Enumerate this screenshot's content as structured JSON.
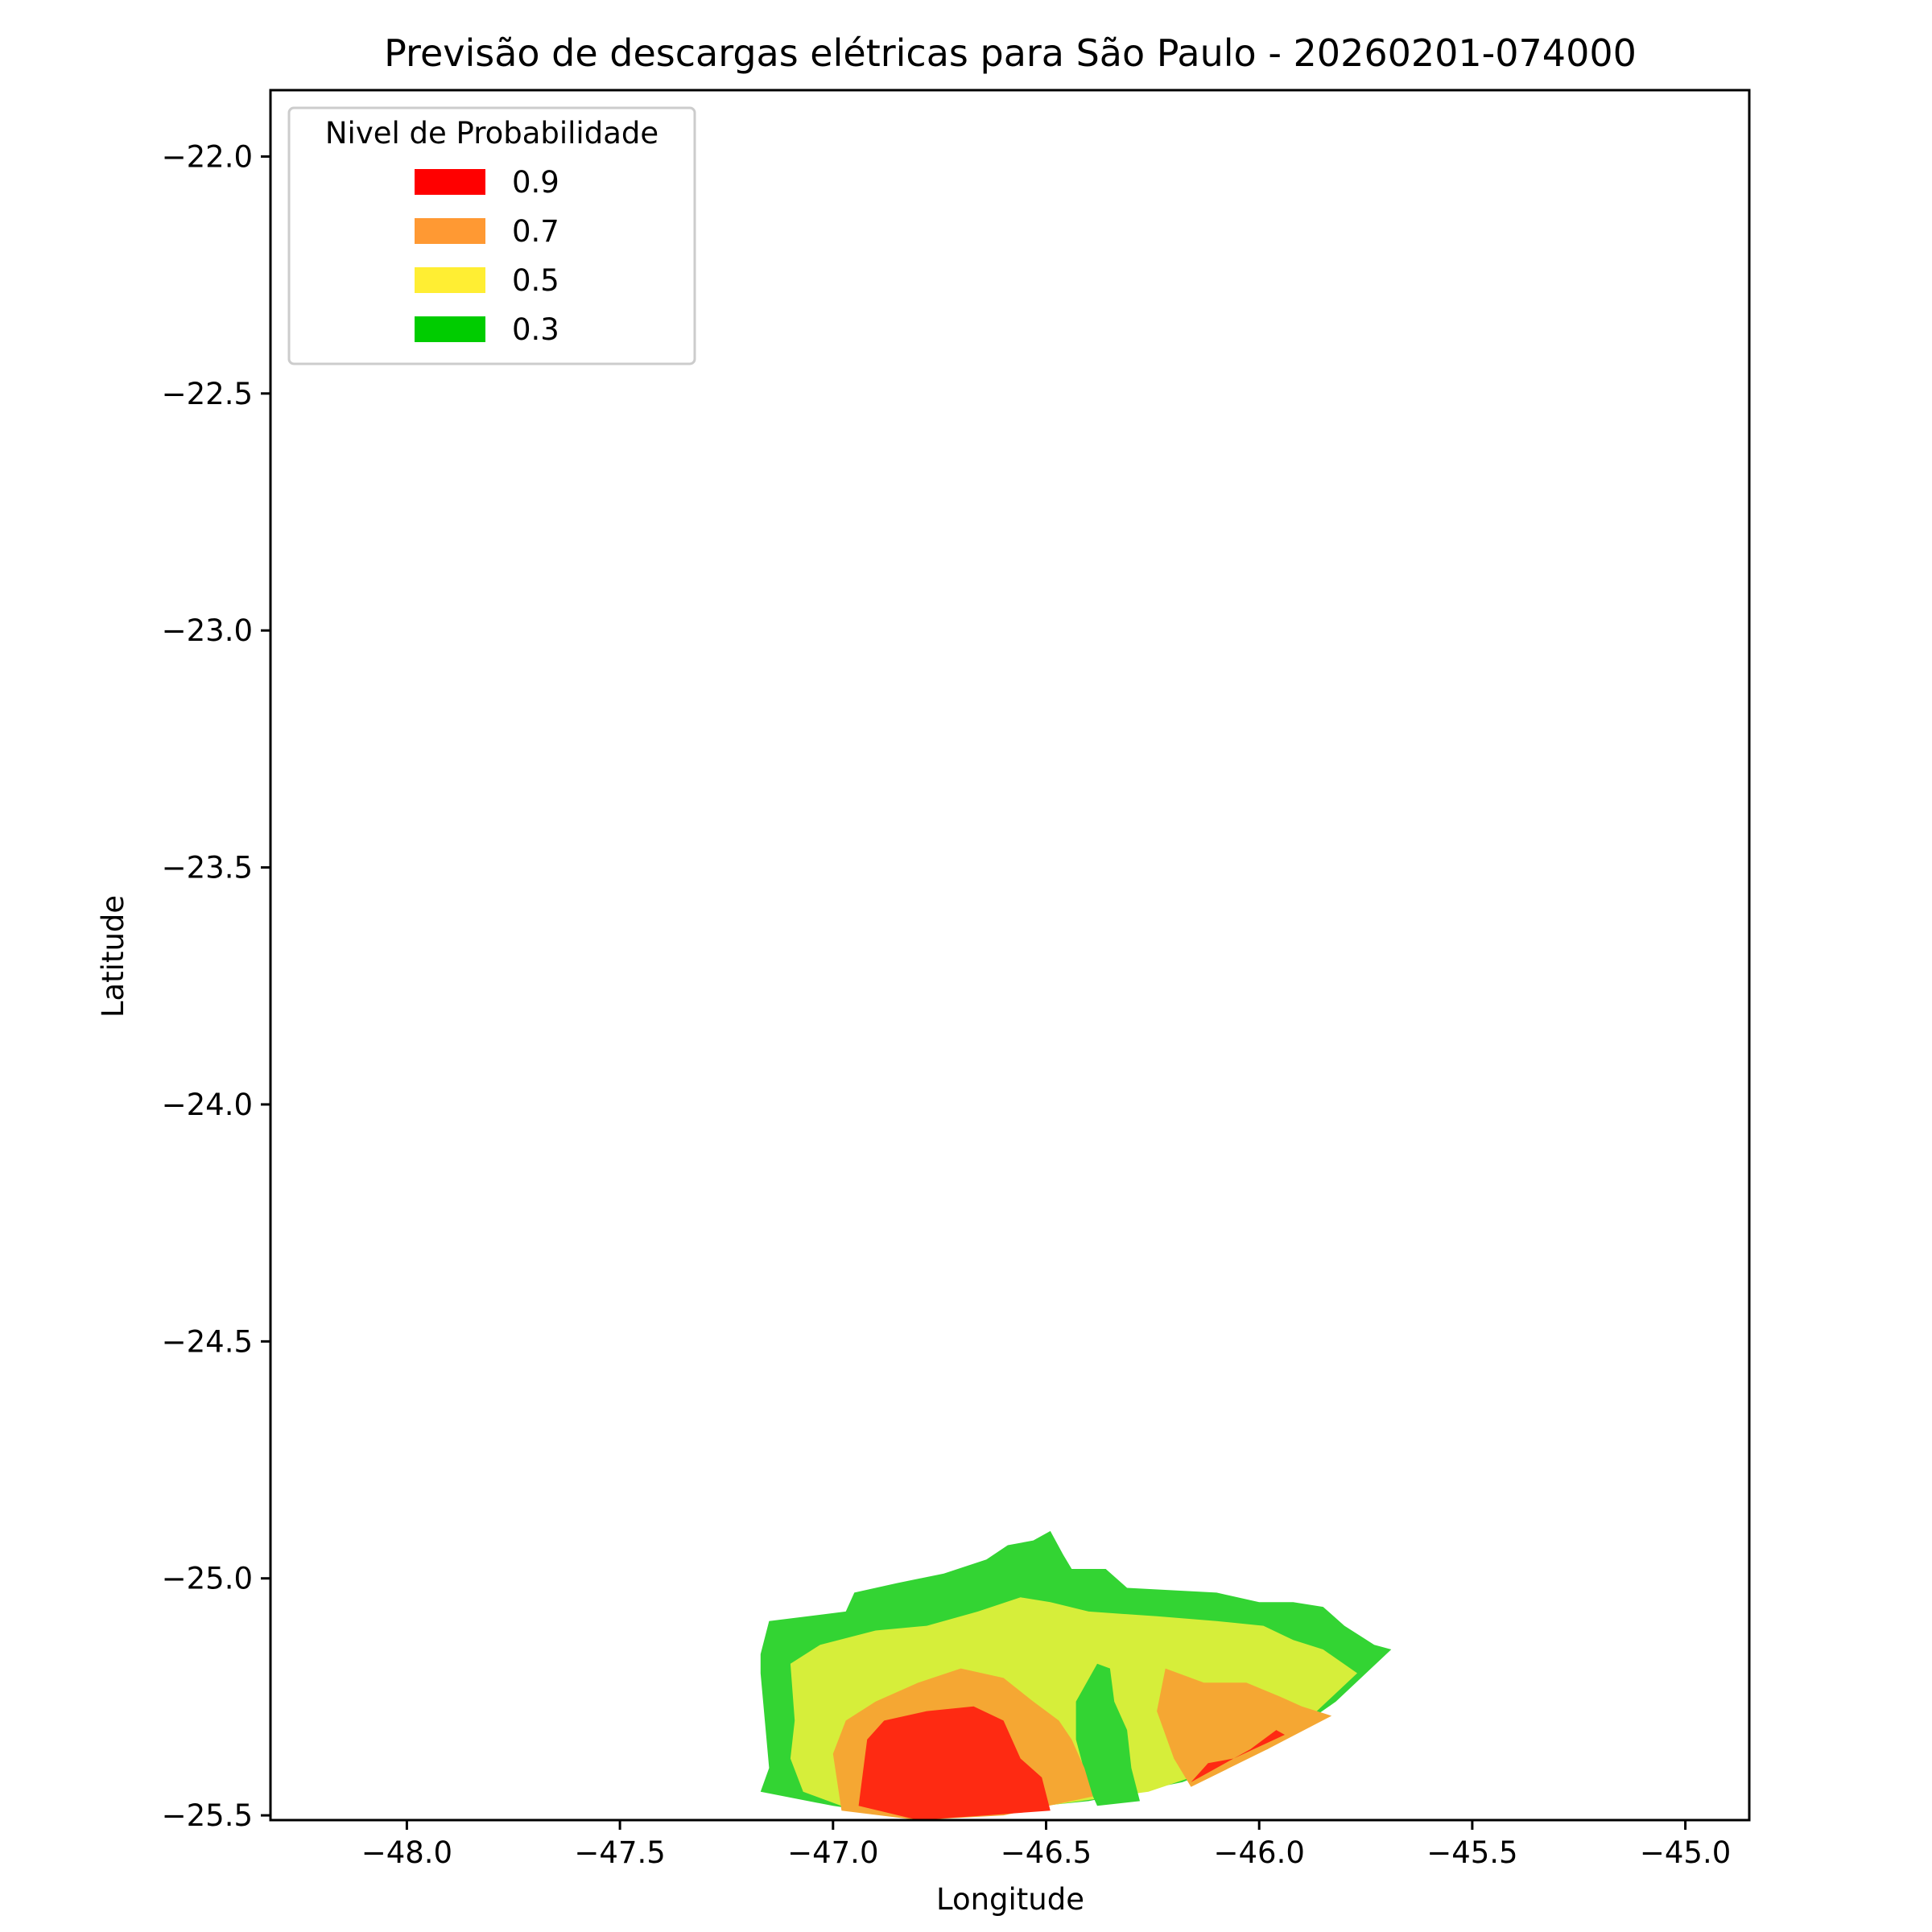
{
  "colors": {
    "red": "#fe2a12",
    "orange": "#f5a733",
    "yellow": "#d6ee3a",
    "green": "#33d433",
    "legend_red": "#ff0000",
    "legend_orange": "#ff9933",
    "legend_yellow": "#ffee33",
    "legend_green": "#00cc00"
  },
  "chart_data": {
    "type": "contour-map",
    "title": "Previsão de descargas elétricas para São Paulo - 20260201-074000",
    "xlabel": "Longitude",
    "ylabel": "Latitude",
    "xlim": [
      -48.32,
      -44.85
    ],
    "ylim": [
      -25.51,
      -21.86
    ],
    "xticks": [
      -48.0,
      -47.5,
      -47.0,
      -46.5,
      -46.0,
      -45.5,
      -45.0
    ],
    "xtick_labels": [
      "−48.0",
      "−47.5",
      "−47.0",
      "−46.5",
      "−46.0",
      "−45.5",
      "−45.0"
    ],
    "yticks": [
      -22.0,
      -22.5,
      -23.0,
      -23.5,
      -24.0,
      -24.5,
      -25.0,
      -25.5
    ],
    "ytick_labels": [
      "−22.0",
      "−22.5",
      "−23.0",
      "−23.5",
      "−24.0",
      "−24.5",
      "−25.0",
      "−25.5"
    ],
    "grid": false,
    "legend": {
      "title": "Nivel de Probabilidade",
      "placement": "upper-left",
      "entries": [
        {
          "label": "0.9",
          "color_key": "legend_red"
        },
        {
          "label": "0.7",
          "color_key": "legend_orange"
        },
        {
          "label": "0.5",
          "color_key": "legend_yellow"
        },
        {
          "label": "0.3",
          "color_key": "legend_green"
        }
      ]
    },
    "regions": [
      {
        "level": 0.3,
        "color_key": "green",
        "lonlat": [
          [
            -47.17,
            -25.16
          ],
          [
            -47.15,
            -25.09
          ],
          [
            -46.97,
            -25.07
          ],
          [
            -46.95,
            -25.03
          ],
          [
            -46.85,
            -25.01
          ],
          [
            -46.74,
            -24.99
          ],
          [
            -46.64,
            -24.96
          ],
          [
            -46.59,
            -24.93
          ],
          [
            -46.53,
            -24.92
          ],
          [
            -46.49,
            -24.9
          ],
          [
            -46.46,
            -24.95
          ],
          [
            -46.44,
            -24.98
          ],
          [
            -46.36,
            -24.98
          ],
          [
            -46.31,
            -25.02
          ],
          [
            -46.1,
            -25.03
          ],
          [
            -46.0,
            -25.05
          ],
          [
            -45.92,
            -25.05
          ],
          [
            -45.85,
            -25.06
          ],
          [
            -45.8,
            -25.1
          ],
          [
            -45.73,
            -25.14
          ],
          [
            -45.69,
            -25.15
          ],
          [
            -45.82,
            -25.26
          ],
          [
            -45.98,
            -25.36
          ],
          [
            -46.18,
            -25.43
          ],
          [
            -46.4,
            -25.47
          ],
          [
            -46.62,
            -25.49
          ],
          [
            -46.85,
            -25.5
          ],
          [
            -47.0,
            -25.48
          ],
          [
            -47.17,
            -25.45
          ],
          [
            -47.15,
            -25.4
          ],
          [
            -47.16,
            -25.3
          ],
          [
            -47.17,
            -25.2
          ]
        ]
      },
      {
        "level": 0.5,
        "color_key": "yellow",
        "lonlat": [
          [
            -47.1,
            -25.18
          ],
          [
            -47.03,
            -25.14
          ],
          [
            -46.9,
            -25.11
          ],
          [
            -46.78,
            -25.1
          ],
          [
            -46.66,
            -25.07
          ],
          [
            -46.56,
            -25.04
          ],
          [
            -46.49,
            -25.05
          ],
          [
            -46.4,
            -25.07
          ],
          [
            -46.24,
            -25.08
          ],
          [
            -46.1,
            -25.09
          ],
          [
            -45.99,
            -25.1
          ],
          [
            -45.92,
            -25.13
          ],
          [
            -45.85,
            -25.15
          ],
          [
            -45.77,
            -25.2
          ],
          [
            -45.9,
            -25.31
          ],
          [
            -46.06,
            -25.39
          ],
          [
            -46.26,
            -25.45
          ],
          [
            -46.5,
            -25.48
          ],
          [
            -46.72,
            -25.5
          ],
          [
            -46.95,
            -25.49
          ],
          [
            -47.07,
            -25.45
          ],
          [
            -47.1,
            -25.38
          ],
          [
            -47.09,
            -25.3
          ]
        ]
      },
      {
        "level": 0.3,
        "color_key": "green",
        "lonlat": [
          [
            -46.38,
            -25.18
          ],
          [
            -46.35,
            -25.19
          ],
          [
            -46.34,
            -25.26
          ],
          [
            -46.31,
            -25.32
          ],
          [
            -46.3,
            -25.4
          ],
          [
            -46.28,
            -25.47
          ],
          [
            -46.38,
            -25.48
          ],
          [
            -46.4,
            -25.44
          ],
          [
            -46.43,
            -25.34
          ],
          [
            -46.43,
            -25.26
          ]
        ]
      },
      {
        "level": 0.7,
        "color_key": "orange",
        "lonlat": [
          [
            -47.0,
            -25.37
          ],
          [
            -46.97,
            -25.3
          ],
          [
            -46.9,
            -25.26
          ],
          [
            -46.8,
            -25.22
          ],
          [
            -46.7,
            -25.19
          ],
          [
            -46.6,
            -25.21
          ],
          [
            -46.53,
            -25.26
          ],
          [
            -46.47,
            -25.3
          ],
          [
            -46.44,
            -25.34
          ],
          [
            -46.41,
            -25.4
          ],
          [
            -46.39,
            -25.46
          ],
          [
            -46.6,
            -25.5
          ],
          [
            -46.8,
            -25.51
          ],
          [
            -46.98,
            -25.49
          ]
        ]
      },
      {
        "level": 0.7,
        "color_key": "orange",
        "lonlat": [
          [
            -46.22,
            -25.19
          ],
          [
            -46.13,
            -25.22
          ],
          [
            -46.03,
            -25.22
          ],
          [
            -45.95,
            -25.25
          ],
          [
            -45.9,
            -25.27
          ],
          [
            -45.83,
            -25.29
          ],
          [
            -45.98,
            -25.36
          ],
          [
            -46.16,
            -25.44
          ],
          [
            -46.2,
            -25.38
          ],
          [
            -46.24,
            -25.28
          ]
        ]
      },
      {
        "level": 0.9,
        "color_key": "red",
        "lonlat": [
          [
            -46.92,
            -25.34
          ],
          [
            -46.88,
            -25.3
          ],
          [
            -46.78,
            -25.28
          ],
          [
            -46.67,
            -25.27
          ],
          [
            -46.6,
            -25.3
          ],
          [
            -46.56,
            -25.38
          ],
          [
            -46.51,
            -25.42
          ],
          [
            -46.49,
            -25.49
          ],
          [
            -46.64,
            -25.5
          ],
          [
            -46.8,
            -25.51
          ],
          [
            -46.94,
            -25.48
          ]
        ]
      },
      {
        "level": 0.9,
        "color_key": "red",
        "lonlat": [
          [
            -45.99,
            -25.34
          ],
          [
            -46.02,
            -25.36
          ],
          [
            -46.06,
            -25.38
          ],
          [
            -46.12,
            -25.39
          ],
          [
            -46.16,
            -25.43
          ],
          [
            -46.06,
            -25.38
          ],
          [
            -45.94,
            -25.33
          ],
          [
            -45.96,
            -25.32
          ]
        ]
      }
    ]
  }
}
